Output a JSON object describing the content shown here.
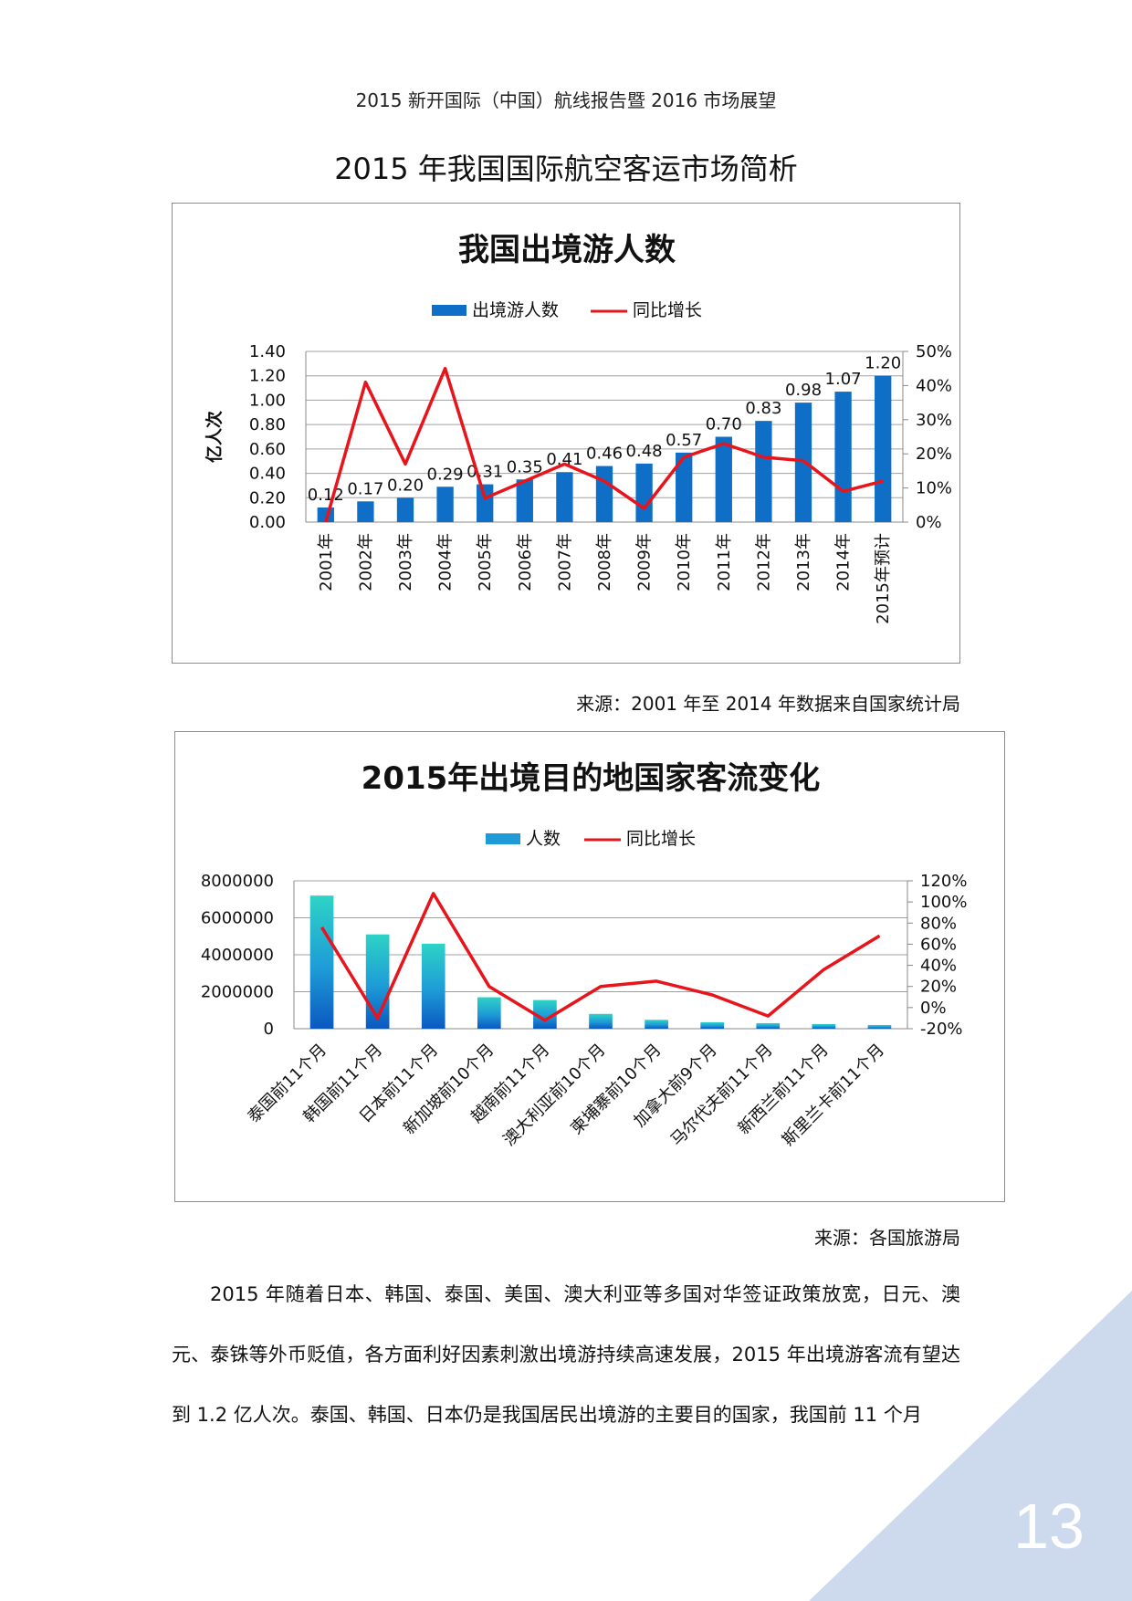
{
  "header": {
    "running_title": "2015 新开国际（中国）航线报告暨 2016 市场展望"
  },
  "section": {
    "title": "2015 年我国国际航空客运市场简析"
  },
  "chart_data": [
    {
      "type": "bar",
      "title": "我国出境游人数",
      "ylabel": "亿人次",
      "categories": [
        "2001年",
        "2002年",
        "2003年",
        "2004年",
        "2005年",
        "2006年",
        "2007年",
        "2008年",
        "2009年",
        "2010年",
        "2011年",
        "2012年",
        "2013年",
        "2014年",
        "2015年预计"
      ],
      "series": [
        {
          "name": "出境游人数",
          "type": "bar",
          "axis": "left",
          "color": "#0F6FC6",
          "values": [
            0.12,
            0.17,
            0.2,
            0.29,
            0.31,
            0.35,
            0.41,
            0.46,
            0.48,
            0.57,
            0.7,
            0.83,
            0.98,
            1.07,
            1.2
          ]
        },
        {
          "name": "同比增长",
          "type": "line",
          "axis": "right",
          "color": "#E8141C",
          "values": [
            0.0,
            0.41,
            0.17,
            0.45,
            0.07,
            0.12,
            0.17,
            0.12,
            0.04,
            0.19,
            0.23,
            0.19,
            0.18,
            0.09,
            0.12
          ]
        }
      ],
      "data_labels": [
        "0.12",
        "0.17",
        "0.20",
        "0.29",
        "0.31",
        "0.35",
        "0.41",
        "0.46",
        "0.48",
        "0.57",
        "0.70",
        "0.83",
        "0.98",
        "1.07",
        "1.20"
      ],
      "ylim": [
        0,
        1.4
      ],
      "y_ticks": [
        "0.00",
        "0.20",
        "0.40",
        "0.60",
        "0.80",
        "1.00",
        "1.20",
        "1.40"
      ],
      "y2lim": [
        0,
        0.5
      ],
      "y2_ticks": [
        "0%",
        "10%",
        "20%",
        "30%",
        "40%",
        "50%"
      ],
      "legend": "top",
      "grid": true
    },
    {
      "type": "bar",
      "title": "2015年出境目的地国家客流变化",
      "categories": [
        "泰国前11个月",
        "韩国前11个月",
        "日本前11个月",
        "新加坡前10个月",
        "越南前11个月",
        "澳大利亚前10个月",
        "柬埔寨前10个月",
        "加拿大前9个月",
        "马尔代夫前11个月",
        "新西兰前11个月",
        "斯里兰卡前11个月"
      ],
      "series": [
        {
          "name": "人数",
          "type": "bar",
          "axis": "left",
          "color": "#1E9BD7",
          "values": [
            7200000,
            5100000,
            4600000,
            1700000,
            1550000,
            800000,
            480000,
            350000,
            300000,
            250000,
            200000
          ]
        },
        {
          "name": "同比增长",
          "type": "line",
          "axis": "right",
          "color": "#E8141C",
          "values": [
            0.76,
            -0.1,
            1.08,
            0.2,
            -0.12,
            0.2,
            0.25,
            0.12,
            -0.08,
            0.36,
            0.68
          ]
        }
      ],
      "ylim": [
        0,
        8000000
      ],
      "y_ticks": [
        "0",
        "2000000",
        "4000000",
        "6000000",
        "8000000"
      ],
      "y2lim": [
        -0.2,
        1.2
      ],
      "y2_ticks": [
        "-20%",
        "0%",
        "20%",
        "40%",
        "60%",
        "80%",
        "100%",
        "120%"
      ],
      "legend": "top",
      "grid": true
    }
  ],
  "sources": {
    "chart1": "来源：2001 年至 2014 年数据来自国家统计局",
    "chart2": "来源：各国旅游局"
  },
  "body_text": "2015 年随着日本、韩国、泰国、美国、澳大利亚等多国对华签证政策放宽，日元、澳元、泰铢等外币贬值，各方面利好因素刺激出境游持续高速发展，2015 年出境游客流有望达到 1.2 亿人次。泰国、韩国、日本仍是我国居民出境游的主要目的国家，我国前 11 个月",
  "page": {
    "number": "13",
    "corner_color": "#CDD9ED"
  }
}
